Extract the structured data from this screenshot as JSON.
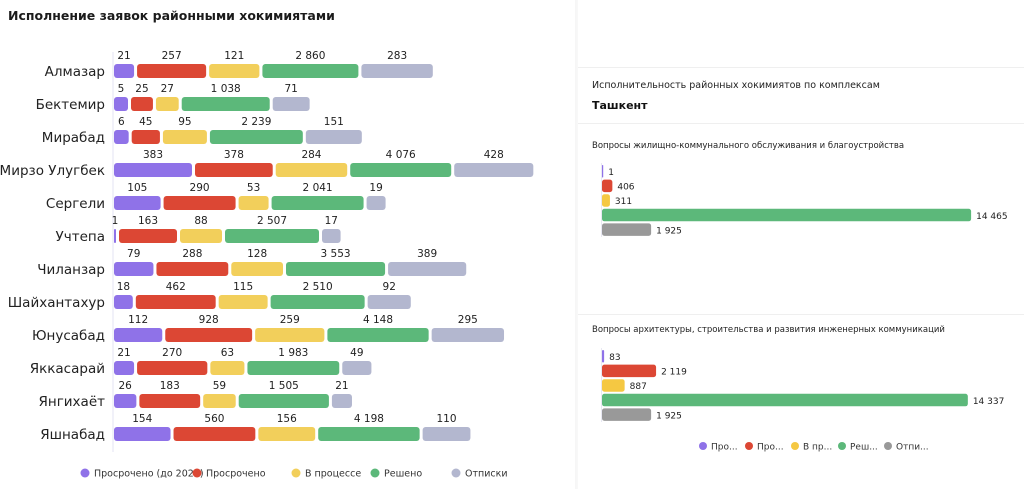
{
  "left_panel": {
    "title": "Исполнение заявок районными хокимиятами"
  },
  "right_panel": {
    "heading": "Исполнительность районных хокимиятов по комплексам",
    "city": "Ташкент"
  },
  "colors": {
    "overdue_before_2025": "#8f72e8",
    "overdue": "#dc4734",
    "in_progress": "#f2cf5b",
    "solved": "#5cb87a",
    "formal_replies": "#b3b7cf",
    "formal_replies_right": "#999999"
  },
  "chart_data": [
    {
      "type": "bar",
      "orientation": "horizontal",
      "stacked": false,
      "layout": "segments-in-row",
      "title": "Исполнение заявок районными хокимиятами",
      "categories": [
        "Алмазар",
        "Бектемир",
        "Мирабад",
        "Мирзо Улугбек",
        "Сергели",
        "Учтепа",
        "Чиланзар",
        "Шайхантахур",
        "Юнусабад",
        "Яккасарай",
        "Янгихаёт",
        "Яшнабад"
      ],
      "series": [
        {
          "name": "Просрочено (до 2025)",
          "color": "#8f72e8",
          "values": [
            21,
            5,
            6,
            383,
            105,
            1,
            79,
            18,
            112,
            21,
            26,
            154
          ]
        },
        {
          "name": "Просрочено",
          "color": "#dc4734",
          "values": [
            257,
            25,
            45,
            378,
            290,
            163,
            288,
            462,
            928,
            270,
            183,
            560
          ]
        },
        {
          "name": "В процессе",
          "color": "#f2cf5b",
          "values": [
            121,
            27,
            95,
            284,
            53,
            88,
            128,
            115,
            259,
            63,
            59,
            156
          ]
        },
        {
          "name": "Решено",
          "color": "#5cb87a",
          "values": [
            2860,
            1038,
            2239,
            4076,
            2041,
            2507,
            3553,
            2510,
            4148,
            1983,
            1505,
            4198
          ]
        },
        {
          "name": "Отписки",
          "color": "#b3b7cf",
          "values": [
            283,
            71,
            151,
            428,
            19,
            17,
            389,
            92,
            295,
            49,
            21,
            110
          ]
        }
      ],
      "legend": [
        "Просрочено (до 2025)",
        "Просрочено",
        "В процессе",
        "Решено",
        "Отписки"
      ],
      "legend_position": "bottom",
      "grid": false
    },
    {
      "type": "bar",
      "orientation": "horizontal",
      "title": "Вопросы жилищно-коммунального обслуживания и благоустройства",
      "categories": [
        "Просрочено (до 2025)",
        "Просрочено",
        "В процессе",
        "Решено",
        "Отписки"
      ],
      "values": [
        1,
        406,
        311,
        14465,
        1925
      ],
      "colors": [
        "#8f72e8",
        "#dc4734",
        "#f5c842",
        "#5cb87a",
        "#999999"
      ],
      "labels": [
        "1",
        "406",
        "311",
        "14 465",
        "1 925"
      ],
      "xlim": [
        0,
        14500
      ],
      "grid": false
    },
    {
      "type": "bar",
      "orientation": "horizontal",
      "title": "Вопросы архитектуры, строительства и развития инженерных коммуникаций",
      "categories": [
        "Просрочено (до 2025)",
        "Просрочено",
        "В процессе",
        "Решено",
        "Отписки"
      ],
      "values": [
        83,
        2119,
        887,
        14337,
        1925
      ],
      "colors": [
        "#8f72e8",
        "#dc4734",
        "#f5c842",
        "#5cb87a",
        "#999999"
      ],
      "labels": [
        "83",
        "2 119",
        "887",
        "14 337",
        "1 925"
      ],
      "xlim": [
        0,
        14500
      ],
      "grid": false
    }
  ],
  "left_labels": {
    "values_text": [
      [
        "21",
        "257",
        "121",
        "2 860",
        "283"
      ],
      [
        "5",
        "25",
        "27",
        "1 038",
        "71"
      ],
      [
        "6",
        "45",
        "95",
        "2 239",
        "151"
      ],
      [
        "383",
        "378",
        "284",
        "4 076",
        "428"
      ],
      [
        "105",
        "290",
        "53",
        "2 041",
        "19"
      ],
      [
        "1",
        "163",
        "88",
        "2 507",
        "17"
      ],
      [
        "79",
        "288",
        "128",
        "3 553",
        "389"
      ],
      [
        "18",
        "462",
        "115",
        "2 510",
        "92"
      ],
      [
        "112",
        "928",
        "259",
        "4 148",
        "295"
      ],
      [
        "21",
        "270",
        "63",
        "1 983",
        "49"
      ],
      [
        "26",
        "183",
        "59",
        "1 505",
        "21"
      ],
      [
        "154",
        "560",
        "156",
        "4 198",
        "110"
      ]
    ]
  },
  "right_legend": [
    {
      "label": "Про...",
      "color": "#8f72e8"
    },
    {
      "label": "Про...",
      "color": "#dc4734"
    },
    {
      "label": "В пр...",
      "color": "#f5c842"
    },
    {
      "label": "Реш...",
      "color": "#5cb87a"
    },
    {
      "label": "Отпи...",
      "color": "#999999"
    }
  ]
}
